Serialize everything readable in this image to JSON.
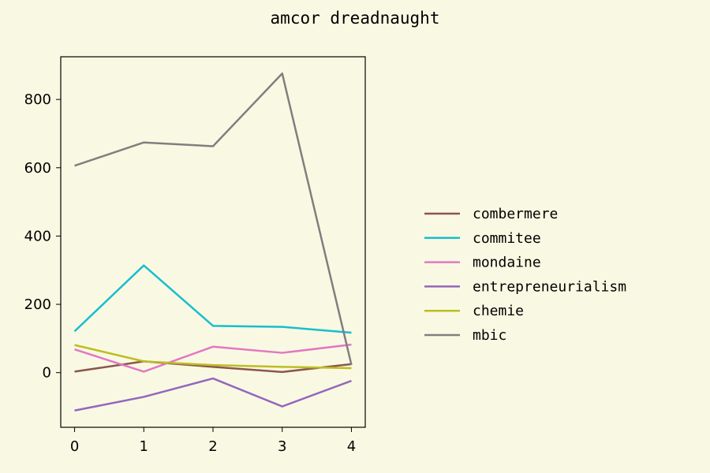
{
  "chart_data": {
    "type": "line",
    "title": "amcor dreadnaught",
    "xlabel": "",
    "ylabel": "",
    "x": [
      0,
      1,
      2,
      3,
      4
    ],
    "xticks": [
      "0",
      "1",
      "2",
      "3",
      "4"
    ],
    "yticks": [
      "0",
      "200",
      "400",
      "600",
      "800"
    ],
    "xlim": [
      -0.2,
      4.2
    ],
    "ylim": [
      -160,
      925
    ],
    "grid": false,
    "legend_position": "right",
    "background": "#f9f9e3",
    "series": [
      {
        "name": "combermere",
        "color": "#8c564b",
        "values": [
          3,
          33,
          17,
          2,
          25
        ]
      },
      {
        "name": "commitee",
        "color": "#17becf",
        "values": [
          121,
          314,
          137,
          134,
          117
        ]
      },
      {
        "name": "mondaine",
        "color": "#e377c2",
        "values": [
          68,
          3,
          76,
          58,
          82
        ]
      },
      {
        "name": "entrepreneurialism",
        "color": "#9467bd",
        "values": [
          -111,
          -71,
          -17,
          -99,
          -24
        ]
      },
      {
        "name": "chemie",
        "color": "#bcbd22",
        "values": [
          81,
          33,
          22,
          17,
          13
        ]
      },
      {
        "name": "mbic",
        "color": "#7f7f7f",
        "values": [
          606,
          674,
          663,
          876,
          23
        ]
      }
    ]
  }
}
